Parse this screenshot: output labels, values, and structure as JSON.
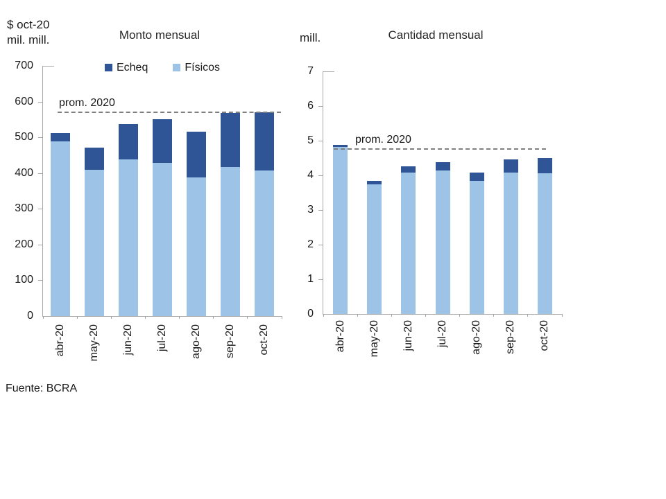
{
  "source_note": "Fuente: BCRA",
  "colors": {
    "echeq": "#2F5597",
    "fisicos": "#9DC3E6",
    "axis": "#A6A6A6",
    "reference_line": "#7F7F7F",
    "text": "#1A1A1A"
  },
  "chart_data": [
    {
      "type": "bar",
      "stacked": true,
      "title": "Monto mensual",
      "axis_unit_lines": [
        "$ oct-20",
        "mil. mill."
      ],
      "categories": [
        "abr-20",
        "may-20",
        "jun-20",
        "jul-20",
        "ago-20",
        "sep-20",
        "oct-20"
      ],
      "series": [
        {
          "name": "Físicos",
          "color": "#9DC3E6",
          "values": [
            488,
            410,
            439,
            428,
            388,
            417,
            408
          ]
        },
        {
          "name": "Echeq",
          "color": "#2F5597",
          "values": [
            23,
            62,
            99,
            122,
            128,
            151,
            162
          ]
        }
      ],
      "totals": [
        511,
        472,
        538,
        550,
        516,
        568,
        570
      ],
      "ylim": [
        0,
        700
      ],
      "ytick_step": 100,
      "ytick_labels": [
        "0",
        "100",
        "200",
        "300",
        "400",
        "500",
        "600",
        "700"
      ],
      "reference_line": {
        "label": "prom. 2020",
        "value": 570
      },
      "legend_items": [
        {
          "label": "Echeq",
          "color": "#2F5597"
        },
        {
          "label": "Físicos",
          "color": "#9DC3E6"
        }
      ],
      "legend_position": "top",
      "grid": false
    },
    {
      "type": "bar",
      "stacked": true,
      "title": "Cantidad mensual",
      "axis_unit_lines": [
        "mill."
      ],
      "categories": [
        "abr-20",
        "may-20",
        "jun-20",
        "jul-20",
        "ago-20",
        "sep-20",
        "oct-20"
      ],
      "series": [
        {
          "name": "Físicos",
          "color": "#9DC3E6",
          "values": [
            4.82,
            3.74,
            4.08,
            4.14,
            3.85,
            4.09,
            4.06
          ]
        },
        {
          "name": "Echeq",
          "color": "#2F5597",
          "values": [
            0.06,
            0.11,
            0.18,
            0.24,
            0.23,
            0.38,
            0.44
          ]
        }
      ],
      "totals": [
        4.88,
        3.85,
        4.26,
        4.38,
        4.08,
        4.47,
        4.5
      ],
      "ylim": [
        0,
        7
      ],
      "ytick_step": 1,
      "ytick_labels": [
        "0",
        "1",
        "2",
        "3",
        "4",
        "5",
        "6",
        "7"
      ],
      "reference_line": {
        "label": "prom. 2020",
        "value": 4.76
      },
      "legend_items": [],
      "legend_position": "none",
      "grid": false
    }
  ]
}
